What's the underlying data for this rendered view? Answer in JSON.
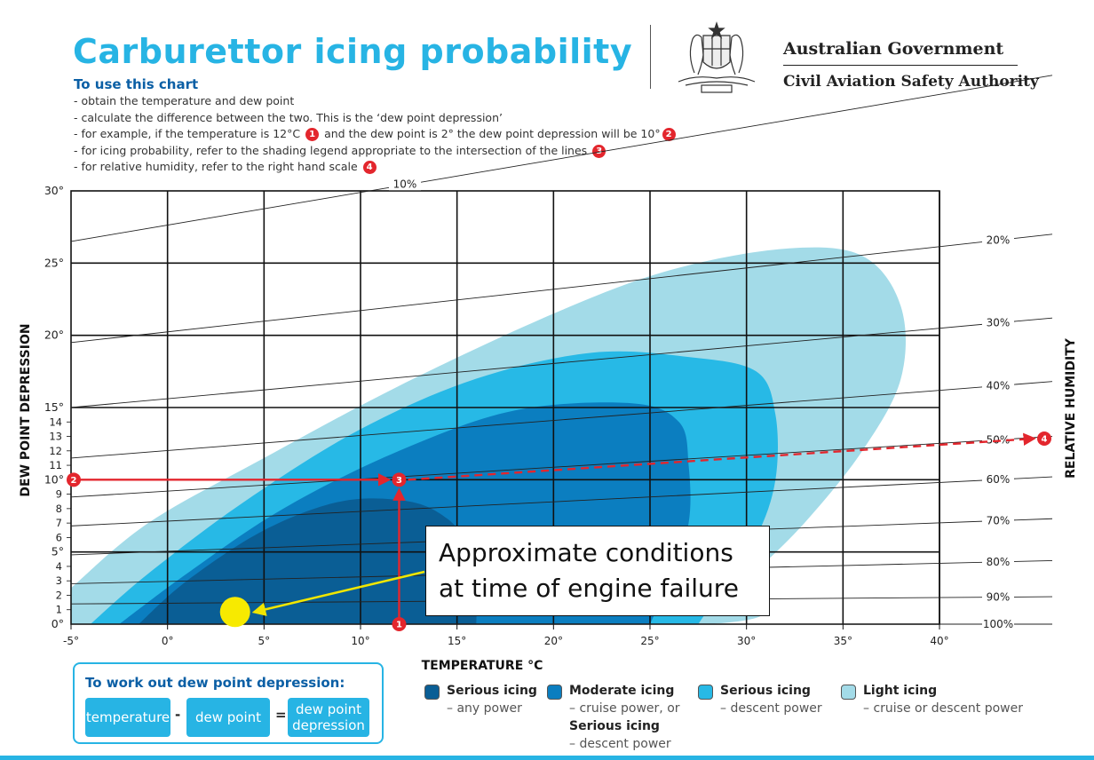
{
  "title": "Carburettor icing probability",
  "instructions": {
    "heading": "To use this chart",
    "line1": "obtain the temperature and dew point",
    "line2": "calculate the difference between the two. This is the ‘dew point depression’",
    "line3a": "for example, if the temperature is 12°C",
    "line3b": "and the dew point is 2° the dew point depression will be 10°",
    "line4": "for icing probability, refer to the shading legend appropriate to the intersection of the lines",
    "line5": "for relative humidity, refer to the right hand scale",
    "badges": [
      "1",
      "2",
      "3",
      "4"
    ]
  },
  "agency": {
    "line1": "Australian Government",
    "line2": "Civil Aviation Safety Authority",
    "crest_icon": "coat-of-arms-icon"
  },
  "callout": {
    "line1": "Approximate conditions",
    "line2": "at time of engine failure"
  },
  "dd_box": {
    "title": "To work out dew point depression:",
    "temperature": "temperature",
    "minus": "-",
    "dew_point": "dew point",
    "equals": "=",
    "result_line1": "dew point",
    "result_line2": "depression"
  },
  "legend": [
    {
      "label": "Serious icing",
      "sub1": "– any power",
      "color": "#0a5e95"
    },
    {
      "label": "Moderate icing",
      "sub1": "– cruise power, or",
      "label2": "Serious icing",
      "sub2": "– descent power",
      "color": "#0b7ec0"
    },
    {
      "label": "Serious icing",
      "sub1": "– descent power",
      "color": "#27b9e6"
    },
    {
      "label": "Light icing",
      "sub1": "– cruise or descent power",
      "color": "#a3dbe8"
    }
  ],
  "chart_data": {
    "type": "area",
    "xlabel": "TEMPERATURE °C",
    "ylabel": "DEW POINT DEPRESSION",
    "y2label": "RELATIVE HUMIDITY",
    "xlim": [
      -5,
      40
    ],
    "ylim": [
      0,
      30
    ],
    "x_ticks": [
      "-5°",
      "0°",
      "5°",
      "10°",
      "15°",
      "20°",
      "25°",
      "30°",
      "35°",
      "40°"
    ],
    "y_ticks_major": [
      {
        "v": 0,
        "t": "0°"
      },
      {
        "v": 5,
        "t": "5°"
      },
      {
        "v": 10,
        "t": "10°"
      },
      {
        "v": 15,
        "t": "15°"
      },
      {
        "v": 20,
        "t": "20°"
      },
      {
        "v": 25,
        "t": "25°"
      },
      {
        "v": 30,
        "t": "30°"
      }
    ],
    "y_ticks_minor": [
      {
        "v": 1,
        "t": "1"
      },
      {
        "v": 2,
        "t": "2"
      },
      {
        "v": 3,
        "t": "3"
      },
      {
        "v": 4,
        "t": "4"
      },
      {
        "v": 6,
        "t": "6"
      },
      {
        "v": 7,
        "t": "7"
      },
      {
        "v": 8,
        "t": "8"
      },
      {
        "v": 9,
        "t": "9"
      },
      {
        "v": 11,
        "t": "11"
      },
      {
        "v": 12,
        "t": "12"
      },
      {
        "v": 13,
        "t": "13"
      },
      {
        "v": 14,
        "t": "14"
      }
    ],
    "rh_lines": [
      {
        "label": "10%",
        "y_left": 26.5,
        "y_right": 38.0
      },
      {
        "label": "20%",
        "y_left": 19.5,
        "y_right": 27.0
      },
      {
        "label": "30%",
        "y_left": 15.0,
        "y_right": 21.2
      },
      {
        "label": "40%",
        "y_left": 11.5,
        "y_right": 16.8
      },
      {
        "label": "50%",
        "y_left": 8.8,
        "y_right": 13.0
      },
      {
        "label": "60%",
        "y_left": 6.8,
        "y_right": 10.2
      },
      {
        "label": "70%",
        "y_left": 4.8,
        "y_right": 7.3
      },
      {
        "label": "80%",
        "y_left": 2.8,
        "y_right": 4.4
      },
      {
        "label": "90%",
        "y_left": 1.4,
        "y_right": 1.9
      },
      {
        "label": "100%",
        "y_left": 0,
        "y_right": 0
      }
    ],
    "regions": [
      {
        "name": "Light icing",
        "color": "#a3dbe8",
        "points": [
          [
            -5,
            2.5
          ],
          [
            -1,
            7
          ],
          [
            5,
            11.5
          ],
          [
            12,
            16.5
          ],
          [
            20,
            21.5
          ],
          [
            26,
            24.5
          ],
          [
            32,
            26
          ],
          [
            36,
            25.5
          ],
          [
            38,
            22
          ],
          [
            38,
            17
          ],
          [
            36,
            12
          ],
          [
            33,
            7
          ],
          [
            30,
            3
          ],
          [
            28,
            0
          ],
          [
            -5,
            0
          ]
        ]
      },
      {
        "name": "Serious icing (descent power)",
        "color": "#27b9e6",
        "points": [
          [
            -4,
            0
          ],
          [
            -1,
            3.5
          ],
          [
            4,
            8.5
          ],
          [
            10,
            13.5
          ],
          [
            16,
            17
          ],
          [
            22,
            18.8
          ],
          [
            27,
            18.5
          ],
          [
            30.5,
            17.5
          ],
          [
            31.5,
            14.5
          ],
          [
            31.5,
            10
          ],
          [
            30.5,
            6
          ],
          [
            28.5,
            2
          ],
          [
            27.5,
            0
          ]
        ]
      },
      {
        "name": "Moderate icing",
        "color": "#0b7ec0",
        "points": [
          [
            -2.5,
            0
          ],
          [
            1,
            3.5
          ],
          [
            6,
            8
          ],
          [
            12,
            12
          ],
          [
            18,
            14.8
          ],
          [
            24,
            15.3
          ],
          [
            26.5,
            14
          ],
          [
            27,
            11
          ],
          [
            27,
            7
          ],
          [
            26,
            3
          ],
          [
            25,
            0
          ]
        ]
      },
      {
        "name": "Serious icing (any power)",
        "color": "#0a5e95",
        "points": [
          [
            -1.5,
            0
          ],
          [
            1,
            3
          ],
          [
            5,
            6.5
          ],
          [
            9,
            8.5
          ],
          [
            12.5,
            8.5
          ],
          [
            14.5,
            7.3
          ],
          [
            15.5,
            5.5
          ],
          [
            16,
            3
          ],
          [
            16,
            0
          ]
        ]
      }
    ],
    "example": {
      "temperature": 12,
      "dew_point_depression": 10,
      "rh_result": "approximately 53%"
    },
    "failure_point": {
      "x": 3.5,
      "y": 0.6
    }
  }
}
